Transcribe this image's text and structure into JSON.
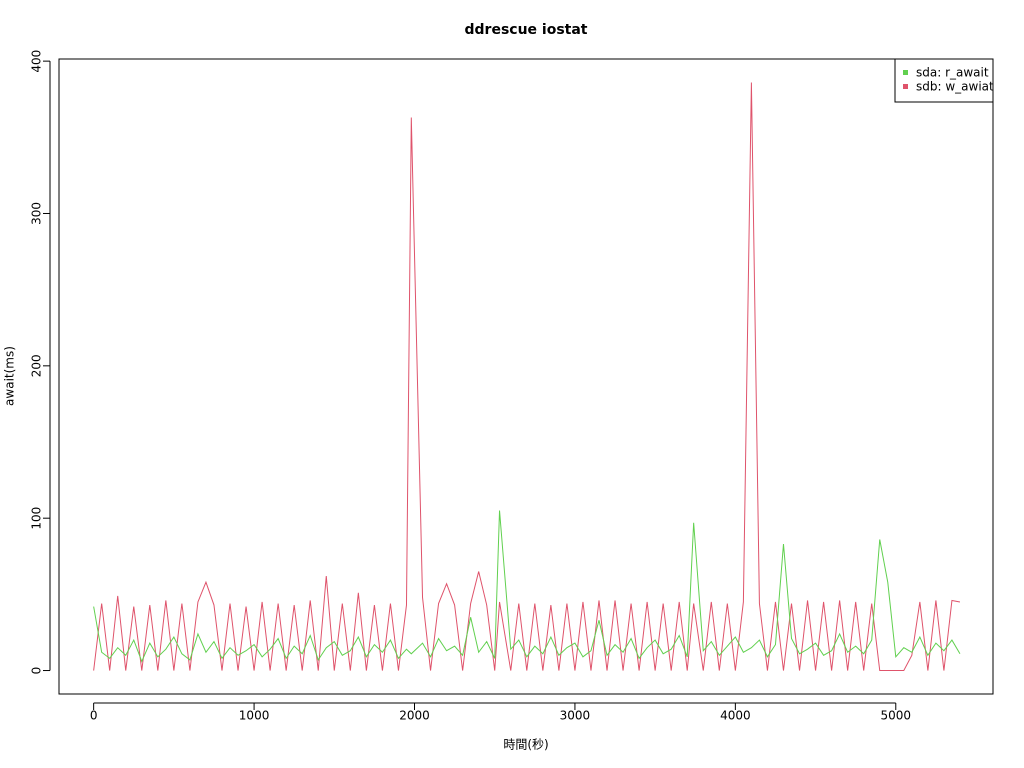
{
  "chart_data": {
    "type": "line",
    "title": "ddrescue iostat",
    "x_label": "時間(秒)",
    "y_label": "await(ms)",
    "x": [
      0,
      50,
      100,
      150,
      200,
      250,
      300,
      350,
      400,
      450,
      500,
      550,
      600,
      650,
      700,
      750,
      800,
      850,
      900,
      950,
      1000,
      1050,
      1100,
      1150,
      1200,
      1250,
      1300,
      1350,
      1400,
      1450,
      1500,
      1550,
      1600,
      1650,
      1700,
      1750,
      1800,
      1850,
      1900,
      1950,
      1980,
      2050,
      2100,
      2150,
      2200,
      2250,
      2300,
      2350,
      2400,
      2450,
      2500,
      2530,
      2600,
      2650,
      2700,
      2750,
      2800,
      2850,
      2900,
      2950,
      3000,
      3050,
      3100,
      3150,
      3200,
      3250,
      3300,
      3350,
      3400,
      3450,
      3500,
      3550,
      3600,
      3650,
      3700,
      3740,
      3800,
      3850,
      3900,
      3950,
      4000,
      4050,
      4100,
      4150,
      4200,
      4250,
      4300,
      4350,
      4400,
      4450,
      4500,
      4550,
      4600,
      4650,
      4700,
      4750,
      4800,
      4850,
      4900,
      4950,
      5000,
      5050,
      5100,
      5150,
      5200,
      5250,
      5300,
      5350,
      5400
    ],
    "series": [
      {
        "name": "sdb: w_awiat",
        "color": "#df536b",
        "values": [
          0,
          44,
          0,
          49,
          0,
          42,
          0,
          43,
          0,
          46,
          0,
          44,
          0,
          45,
          58,
          43,
          0,
          44,
          0,
          42,
          0,
          45,
          0,
          44,
          0,
          43,
          0,
          46,
          0,
          62,
          0,
          44,
          0,
          51,
          0,
          43,
          0,
          44,
          0,
          43,
          363,
          48,
          0,
          44,
          57,
          43,
          0,
          44,
          65,
          43,
          0,
          45,
          0,
          44,
          0,
          44,
          0,
          43,
          0,
          44,
          0,
          45,
          0,
          46,
          0,
          46,
          0,
          44,
          0,
          45,
          0,
          44,
          0,
          45,
          0,
          44,
          0,
          45,
          0,
          44,
          0,
          45,
          386,
          44,
          0,
          45,
          0,
          44,
          0,
          46,
          0,
          45,
          0,
          46,
          0,
          45,
          0,
          44,
          0,
          0,
          0,
          0,
          10,
          45,
          0,
          46,
          0,
          46,
          45
        ]
      },
      {
        "name": "sda: r_await",
        "color": "#61d04f",
        "values": [
          42,
          12,
          8,
          15,
          10,
          20,
          6,
          18,
          9,
          14,
          22,
          11,
          7,
          24,
          12,
          19,
          8,
          15,
          10,
          13,
          17,
          9,
          14,
          21,
          8,
          16,
          11,
          23,
          7,
          15,
          19,
          10,
          13,
          22,
          9,
          17,
          12,
          20,
          8,
          14,
          11,
          18,
          9,
          21,
          13,
          16,
          10,
          35,
          12,
          19,
          8,
          105,
          14,
          20,
          9,
          16,
          11,
          22,
          10,
          15,
          18,
          9,
          13,
          33,
          10,
          17,
          12,
          21,
          8,
          15,
          20,
          11,
          14,
          23,
          9,
          97,
          13,
          19,
          10,
          16,
          22,
          12,
          15,
          20,
          9,
          17,
          83,
          21,
          11,
          14,
          18,
          10,
          13,
          24,
          12,
          16,
          11,
          20,
          86,
          58,
          9,
          15,
          12,
          22,
          10,
          18,
          13,
          20,
          11
        ]
      }
    ],
    "legend_order": [
      1,
      0
    ],
    "legend_position": "top-right",
    "xlim": [
      -216,
      5606
    ],
    "xticks": [
      0,
      1000,
      2000,
      3000,
      4000,
      5000
    ],
    "ylim": [
      -15.4,
      401.4
    ],
    "yticks": [
      0,
      100,
      200,
      300,
      400
    ]
  }
}
